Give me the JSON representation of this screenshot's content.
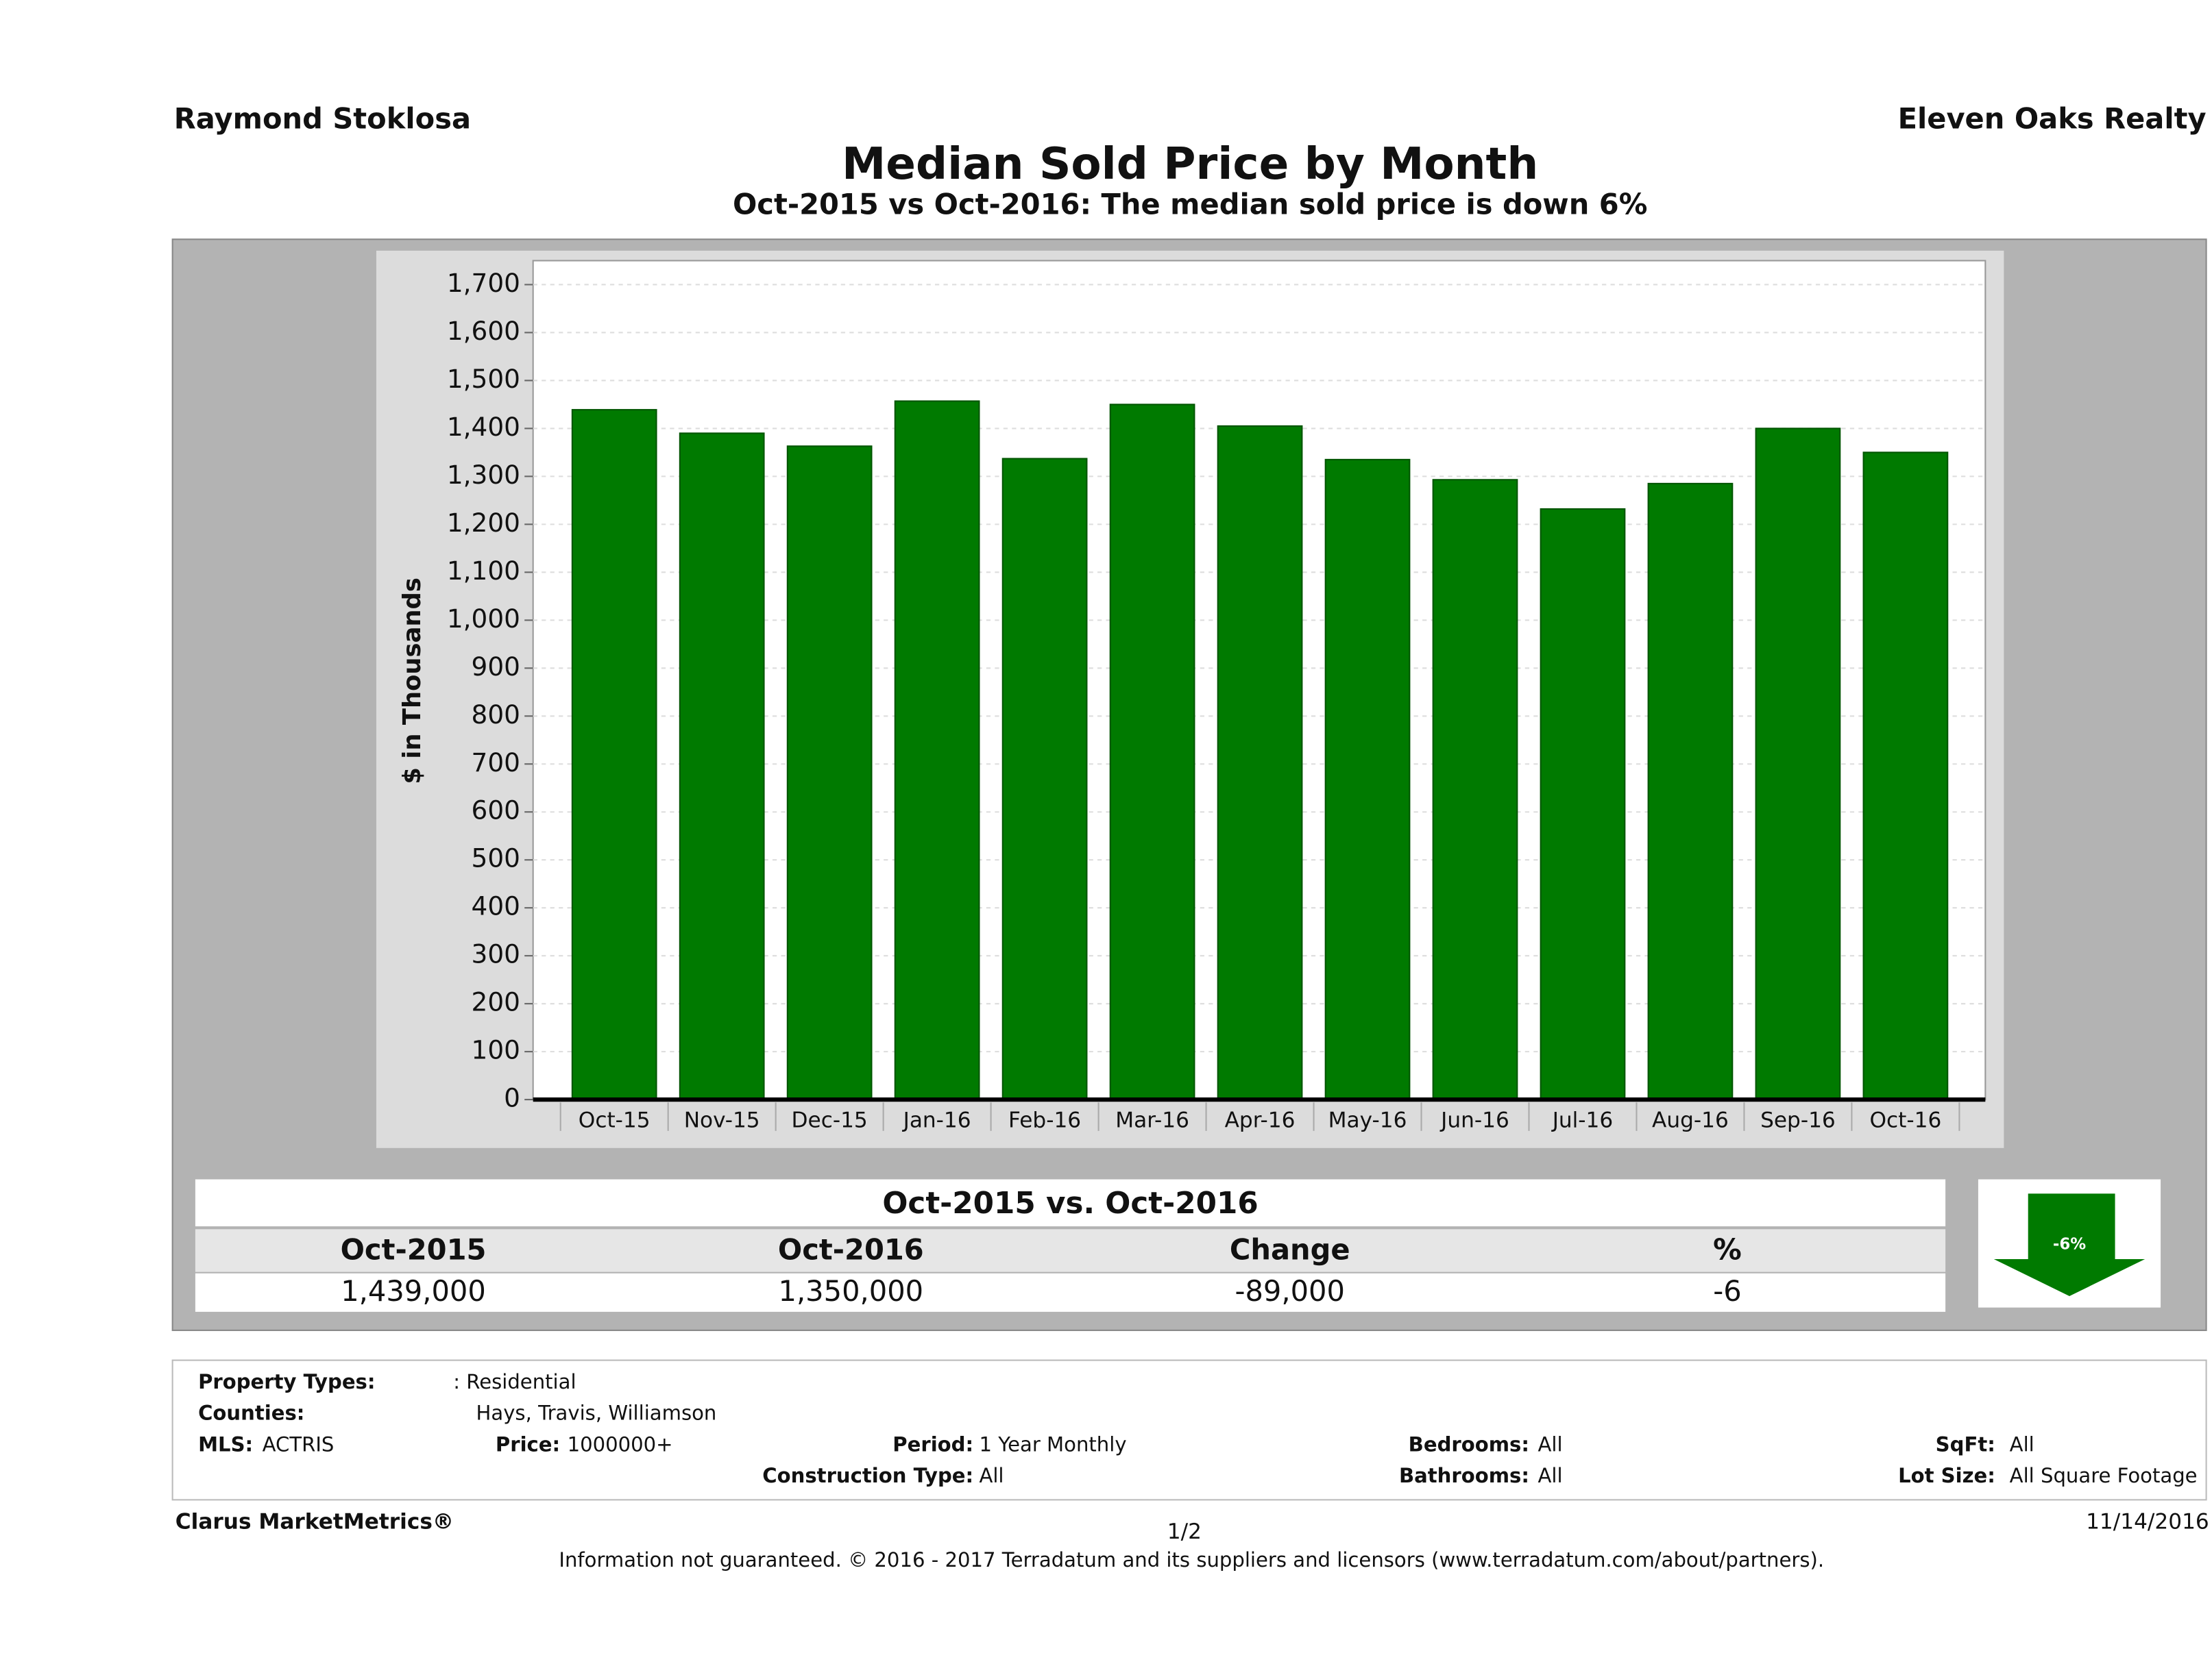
{
  "header": {
    "left": "Raymond Stoklosa",
    "right": "Eleven Oaks Realty"
  },
  "chart_data": {
    "type": "bar",
    "title": "Median Sold Price by Month",
    "subtitle": "Oct-2015 vs Oct-2016: The median sold price is down 6%",
    "y_label": "$ in Thousands",
    "categories": [
      "Oct-15",
      "Nov-15",
      "Dec-15",
      "Jan-16",
      "Feb-16",
      "Mar-16",
      "Apr-16",
      "May-16",
      "Jun-16",
      "Jul-16",
      "Aug-16",
      "Sep-16",
      "Oct-16"
    ],
    "values": [
      1439,
      1390,
      1363,
      1457,
      1337,
      1450,
      1405,
      1335,
      1293,
      1232,
      1285,
      1400,
      1350
    ],
    "color": "#007a00",
    "ylim": [
      0,
      1750
    ],
    "yticks": [
      0,
      100,
      200,
      300,
      400,
      500,
      600,
      700,
      800,
      900,
      {
        "value": 1000,
        "label": "1,000"
      },
      {
        "value": 1100,
        "label": "1,100"
      },
      {
        "value": 1200,
        "label": "1,200"
      },
      {
        "value": 1300,
        "label": "1,300"
      },
      {
        "value": 1400,
        "label": "1,400"
      },
      {
        "value": 1500,
        "label": "1,500"
      },
      {
        "value": 1600,
        "label": "1,600"
      },
      {
        "value": 1700,
        "label": "1,700"
      }
    ],
    "grid": true
  },
  "summary": {
    "title": "Oct-2015 vs. Oct-2016",
    "headers": [
      "Oct-2015",
      "Oct-2016",
      "Change",
      "%"
    ],
    "values": [
      "1,439,000",
      "1,350,000",
      "-89,000",
      "-6"
    ],
    "badge": "-6%"
  },
  "filters": {
    "property_types": [
      "Property Types:",
      ": Residential"
    ],
    "counties": [
      "Counties:",
      "Hays, Travis, Williamson"
    ],
    "mls": [
      "MLS:",
      "ACTRIS"
    ],
    "price": [
      "Price:",
      "1000000+"
    ],
    "period": [
      "Period:",
      "1 Year Monthly"
    ],
    "bedrooms": [
      "Bedrooms:",
      "All"
    ],
    "sqft": [
      "SqFt:",
      "All"
    ],
    "construction": [
      "Construction Type:",
      "All"
    ],
    "bathrooms": [
      "Bathrooms:",
      "All"
    ],
    "lot_size": [
      "Lot Size:",
      "All Square Footage"
    ]
  },
  "footer": {
    "brand": "Clarus MarketMetrics®",
    "page": "1/2",
    "date": "11/14/2016",
    "disclaimer": "Information not guaranteed. © 2016 - 2017 Terradatum and its suppliers and licensors (www.terradatum.com/about/partners)."
  }
}
